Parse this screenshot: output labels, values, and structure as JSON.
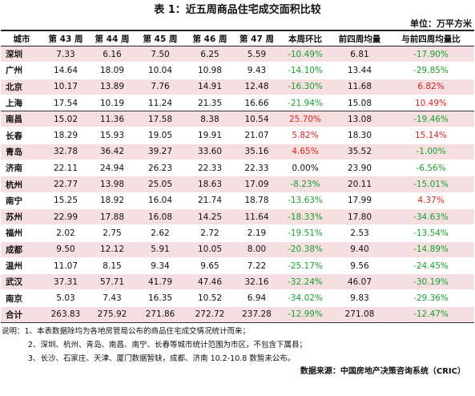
{
  "title": "表 1：近五周商品住宅成交面积比较",
  "unit": "单位：万平方米",
  "headers": [
    "城市",
    "第 43 周",
    "第 44 周",
    "第 45 周",
    "第 46 周",
    "第 47 周",
    "本周环比",
    "前四周均量",
    "与前四周均量比"
  ],
  "rows": [
    {
      "city": "深圳",
      "w43": "7.33",
      "w44": "6.16",
      "w45": "7.50",
      "w46": "6.25",
      "w47": "5.59",
      "wow": "-10.49%",
      "avg4": "6.81",
      "vsavg": "-17.90%"
    },
    {
      "city": "广州",
      "w43": "14.64",
      "w44": "18.09",
      "w45": "10.04",
      "w46": "10.98",
      "w47": "9.43",
      "wow": "-14.10%",
      "avg4": "13.44",
      "vsavg": "-29.85%"
    },
    {
      "city": "北京",
      "w43": "10.17",
      "w44": "13.89",
      "w45": "7.76",
      "w46": "14.91",
      "w47": "12.48",
      "wow": "-16.30%",
      "avg4": "11.68",
      "vsavg": "6.82%"
    },
    {
      "city": "上海",
      "w43": "17.54",
      "w44": "10.19",
      "w45": "11.24",
      "w46": "21.35",
      "w47": "16.66",
      "wow": "-21.94%",
      "avg4": "15.08",
      "vsavg": "10.49%"
    },
    {
      "city": "南昌",
      "w43": "15.02",
      "w44": "11.36",
      "w45": "17.58",
      "w46": "8.38",
      "w47": "10.54",
      "wow": "25.70%",
      "avg4": "13.08",
      "vsavg": "-19.46%"
    },
    {
      "city": "长春",
      "w43": "18.29",
      "w44": "15.93",
      "w45": "19.05",
      "w46": "19.91",
      "w47": "21.07",
      "wow": "5.82%",
      "avg4": "18.30",
      "vsavg": "15.14%"
    },
    {
      "city": "青岛",
      "w43": "32.78",
      "w44": "36.42",
      "w45": "39.27",
      "w46": "33.60",
      "w47": "35.16",
      "wow": "4.65%",
      "avg4": "35.52",
      "vsavg": "-1.00%"
    },
    {
      "city": "济南",
      "w43": "22.11",
      "w44": "24.94",
      "w45": "26.23",
      "w46": "22.33",
      "w47": "22.33",
      "wow": "0.00%",
      "avg4": "23.90",
      "vsavg": "-6.56%"
    },
    {
      "city": "杭州",
      "w43": "22.77",
      "w44": "13.98",
      "w45": "25.05",
      "w46": "18.63",
      "w47": "17.09",
      "wow": "-8.23%",
      "avg4": "20.11",
      "vsavg": "-15.01%"
    },
    {
      "city": "南宁",
      "w43": "15.25",
      "w44": "18.92",
      "w45": "16.04",
      "w46": "21.74",
      "w47": "18.78",
      "wow": "-13.63%",
      "avg4": "17.99",
      "vsavg": "4.37%"
    },
    {
      "city": "苏州",
      "w43": "22.99",
      "w44": "17.88",
      "w45": "16.08",
      "w46": "14.25",
      "w47": "11.64",
      "wow": "-18.33%",
      "avg4": "17.80",
      "vsavg": "-34.63%"
    },
    {
      "city": "福州",
      "w43": "2.02",
      "w44": "2.75",
      "w45": "2.62",
      "w46": "2.72",
      "w47": "2.19",
      "wow": "-19.51%",
      "avg4": "2.53",
      "vsavg": "-13.54%"
    },
    {
      "city": "成都",
      "w43": "9.50",
      "w44": "12.12",
      "w45": "5.91",
      "w46": "10.05",
      "w47": "8.00",
      "wow": "-20.38%",
      "avg4": "9.40",
      "vsavg": "-14.89%"
    },
    {
      "city": "温州",
      "w43": "11.07",
      "w44": "8.15",
      "w45": "9.34",
      "w46": "9.65",
      "w47": "7.22",
      "wow": "-25.17%",
      "avg4": "9.56",
      "vsavg": "-24.45%"
    },
    {
      "city": "武汉",
      "w43": "37.31",
      "w44": "57.71",
      "w45": "41.79",
      "w46": "47.46",
      "w47": "32.16",
      "wow": "-32.24%",
      "avg4": "46.07",
      "vsavg": "-30.19%"
    },
    {
      "city": "南京",
      "w43": "5.03",
      "w44": "7.43",
      "w45": "16.35",
      "w46": "10.52",
      "w47": "6.94",
      "wow": "-34.02%",
      "avg4": "9.83",
      "vsavg": "-29.36%"
    }
  ],
  "total": {
    "city": "合计",
    "w43": "263.83",
    "w44": "275.92",
    "w45": "271.86",
    "w46": "272.72",
    "w47": "237.28",
    "wow": "-12.99%",
    "avg4": "271.08",
    "vsavg": "-12.47%"
  },
  "notes": [
    "说明：1、本表数据除均为各地房管局公布的商品住宅成交情况统计而来；",
    "2、深圳、杭州、青岛、南昌、南宁、长春等城市统计范围为市区，不包含下属县；",
    "3、长沙、石家庄、天津、厦门数据暂缺，成都、济南 10.2-10.8 数暂未公布。"
  ],
  "source": "数据来源：中国房地产决策咨询系统（CRIC）",
  "colors": {
    "positive": "#e02020",
    "negative": "#18a030",
    "highlight_row": "#f6dfe0"
  },
  "highlighted_rows": [
    0,
    2,
    4,
    6,
    8,
    10,
    12,
    14
  ],
  "group_end_rows": [
    3
  ]
}
